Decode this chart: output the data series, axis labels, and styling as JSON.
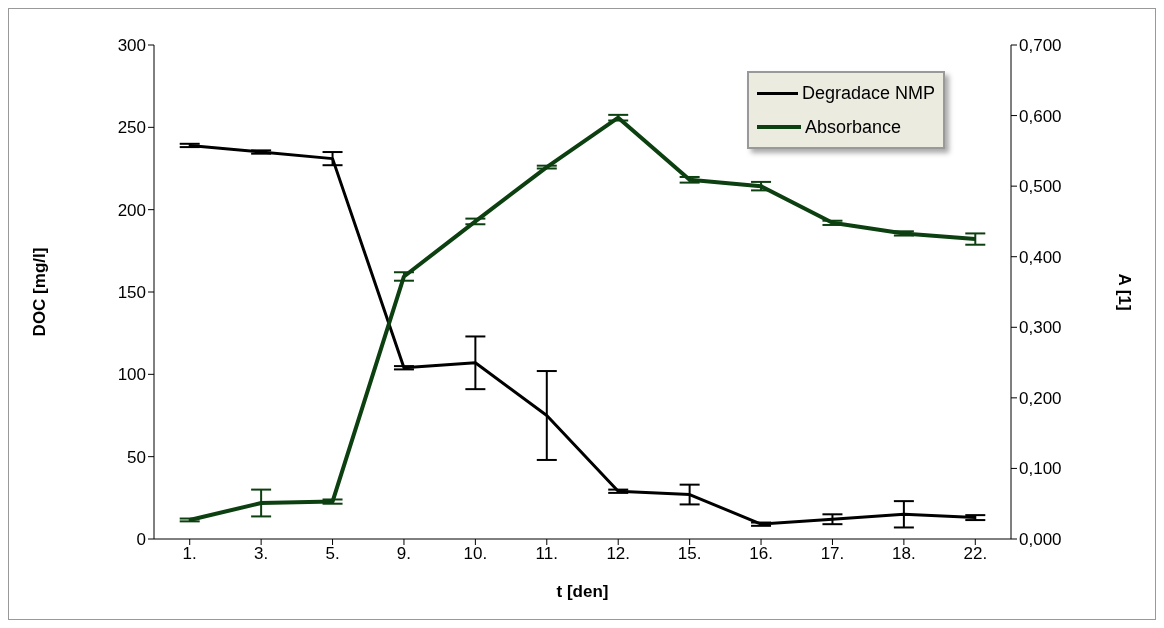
{
  "chart_data": {
    "type": "line",
    "xlabel": "t [den]",
    "ylabel": "DOC [mg/l]",
    "y2label": "A [1]",
    "categories": [
      "1.",
      "3.",
      "5.",
      "9.",
      "10.",
      "11.",
      "12.",
      "15.",
      "16.",
      "17.",
      "18.",
      "22."
    ],
    "series": [
      {
        "name": "Degradace NMP",
        "color": "#000000",
        "values": [
          239,
          235,
          231,
          104,
          107,
          75,
          29,
          27,
          9,
          12,
          15,
          13
        ],
        "errors": [
          1,
          1,
          4,
          1,
          16,
          27,
          1,
          6,
          1,
          3,
          8,
          1.5
        ]
      },
      {
        "name": "Absorbance",
        "color": "#0d4010",
        "axis": "y2",
        "values": [
          0.027,
          0.051,
          0.053,
          0.372,
          0.45,
          0.527,
          0.597,
          0.509,
          0.5,
          0.448,
          0.433,
          0.425
        ],
        "errors": [
          0.002,
          0.019,
          0.003,
          0.006,
          0.004,
          0.002,
          0.004,
          0.004,
          0.006,
          0.003,
          0.003,
          0.008
        ]
      }
    ],
    "ylim": [
      0,
      300
    ],
    "yticks": [
      0,
      50,
      100,
      150,
      200,
      250,
      300
    ],
    "y2lim": [
      0,
      0.7
    ],
    "y2ticks": [
      {
        "value": 0,
        "label": "0,000"
      },
      {
        "value": 0.1,
        "label": "0,100"
      },
      {
        "value": 0.2,
        "label": "0,200"
      },
      {
        "value": 0.3,
        "label": "0,300"
      },
      {
        "value": 0.4,
        "label": "0,400"
      },
      {
        "value": 0.5,
        "label": "0,500"
      },
      {
        "value": 0.6,
        "label": "0,600"
      },
      {
        "value": 0.7,
        "label": "0,700"
      }
    ],
    "grid": false,
    "legend": "top right",
    "marker": "none",
    "line_style": "solid"
  }
}
